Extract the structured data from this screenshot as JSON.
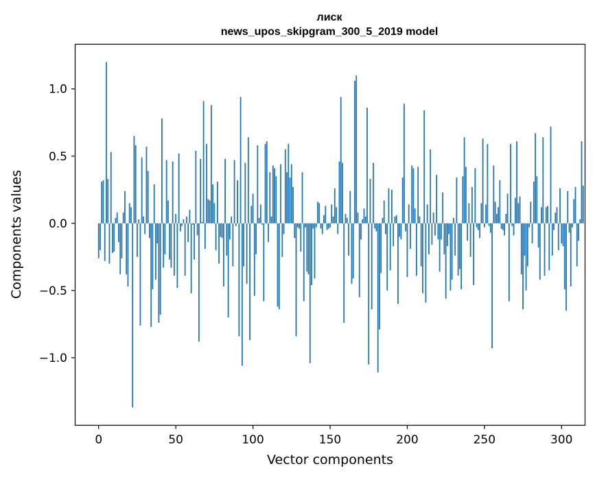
{
  "chart_data": {
    "type": "bar",
    "title": "лиск",
    "subtitle": "news_upos_skipgram_300_5_2019 model",
    "xlabel": "Vector components",
    "ylabel": "Components values",
    "xlim": [
      -15,
      315
    ],
    "ylim": [
      -1.5,
      1.33
    ],
    "xticks": [
      0,
      50,
      100,
      150,
      200,
      250,
      300
    ],
    "xtick_labels": [
      "0",
      "50",
      "100",
      "150",
      "200",
      "250",
      "300"
    ],
    "yticks": [
      -1.0,
      -0.5,
      0.0,
      0.5,
      1.0
    ],
    "ytick_labels": [
      "−1.0",
      "−0.5",
      "0.0",
      "0.5",
      "1.0"
    ],
    "bar_color": "#1f77b4",
    "values": [
      -0.26,
      -0.2,
      0.31,
      0.32,
      -0.28,
      1.2,
      0.33,
      -0.3,
      0.53,
      -0.22,
      -0.21,
      0.04,
      0.08,
      -0.14,
      -0.38,
      -0.26,
      0.08,
      0.24,
      -0.38,
      -0.47,
      0.15,
      0.12,
      -1.37,
      0.65,
      0.58,
      -0.25,
      0.03,
      -0.76,
      0.49,
      0.05,
      -0.08,
      0.57,
      0.39,
      -0.11,
      -0.77,
      -0.49,
      0.29,
      -0.42,
      -0.15,
      -0.74,
      -0.68,
      0.78,
      -0.33,
      -0.23,
      0.47,
      0.17,
      -0.27,
      -0.33,
      0.46,
      -0.39,
      0.07,
      -0.48,
      0.52,
      -0.06,
      -0.02,
      0.03,
      -0.39,
      0.05,
      -0.14,
      0.1,
      -0.52,
      -0.01,
      -0.27,
      0.54,
      -0.09,
      -0.88,
      0.48,
      0.01,
      0.91,
      -0.19,
      0.59,
      0.18,
      0.17,
      0.88,
      0.29,
      0.15,
      -0.2,
      0.31,
      -0.3,
      -0.1,
      -0.11,
      -0.47,
      0.48,
      -0.24,
      -0.7,
      -0.12,
      0.05,
      -0.32,
      0.47,
      -0.02,
      0.32,
      -0.84,
      0.94,
      -1.06,
      -0.32,
      0.45,
      -0.45,
      0.64,
      -0.87,
      0.13,
      0.22,
      -0.54,
      -0.23,
      0.58,
      0.04,
      0.14,
      -0.01,
      -0.58,
      0.59,
      0.61,
      -0.14,
      0.38,
      0.05,
      0.43,
      0.41,
      0.35,
      -0.62,
      -0.64,
      0.44,
      -0.25,
      -0.08,
      0.55,
      0.38,
      0.59,
      0.34,
      0.44,
      0.27,
      -0.11,
      -0.84,
      -0.03,
      -0.04,
      -0.21,
      0.38,
      -0.58,
      -0.03,
      -0.36,
      -0.38,
      -1.04,
      -0.46,
      -0.04,
      -0.41,
      -0.03,
      0.16,
      0.15,
      -0.04,
      -0.08,
      0.06,
      0.13,
      -0.05,
      -0.04,
      -0.03,
      0.14,
      0.05,
      0.26,
      0.12,
      -0.08,
      0.46,
      0.94,
      0.45,
      -0.74,
      0.07,
      0.04,
      -0.24,
      0.24,
      -0.45,
      -0.41,
      1.06,
      1.1,
      0.08,
      -0.55,
      -0.12,
      0.03,
      0.11,
      0.05,
      0.86,
      -1.05,
      0.33,
      -0.64,
      0.45,
      -0.04,
      -0.06,
      -1.11,
      -0.79,
      -0.37,
      0.04,
      0.17,
      -0.08,
      -0.5,
      0.26,
      -0.35,
      0.25,
      -0.17,
      0.05,
      0.06,
      -0.6,
      -0.1,
      -0.12,
      0.34,
      0.89,
      -0.06,
      -0.4,
      0.14,
      -0.19,
      0.43,
      0.41,
      0.11,
      -0.39,
      0.42,
      0.05,
      -0.32,
      -0.52,
      0.84,
      -0.59,
      0.14,
      -0.23,
      0.55,
      -0.16,
      0.08,
      -0.09,
      0.36,
      -0.12,
      -0.36,
      -0.12,
      0.23,
      -0.23,
      -0.56,
      -0.17,
      -0.08,
      -0.5,
      -0.42,
      0.04,
      -0.24,
      0.34,
      -0.39,
      -0.34,
      -0.49,
      0.35,
      0.64,
      0.42,
      -0.13,
      0.15,
      -0.25,
      0.27,
      -0.46,
      0.41,
      -0.03,
      -0.05,
      -0.11,
      0.15,
      0.63,
      -0.03,
      0.14,
      0.59,
      -0.02,
      -0.07,
      -0.93,
      0.43,
      0.16,
      0.07,
      0.12,
      0.32,
      -0.04,
      -0.05,
      -0.09,
      0.07,
      0.22,
      -0.58,
      0.59,
      -0.02,
      -0.09,
      0.19,
      0.61,
      0.15,
      0.2,
      -0.38,
      -0.64,
      -0.24,
      -0.5,
      -0.32,
      -0.03,
      0.16,
      -0.15,
      0.31,
      0.67,
      0.35,
      -0.18,
      -0.42,
      0.12,
      0.64,
      -0.39,
      0.12,
      0.13,
      -0.35,
      0.72,
      -0.24,
      -0.05,
      0.08,
      0.12,
      -0.2,
      0.26,
      -0.15,
      -0.17,
      -0.49,
      -0.65,
      0.24,
      -0.07,
      -0.47,
      -0.03,
      0.18,
      0.27,
      -0.32,
      -0.13,
      0.03,
      0.61,
      0.28
    ]
  }
}
